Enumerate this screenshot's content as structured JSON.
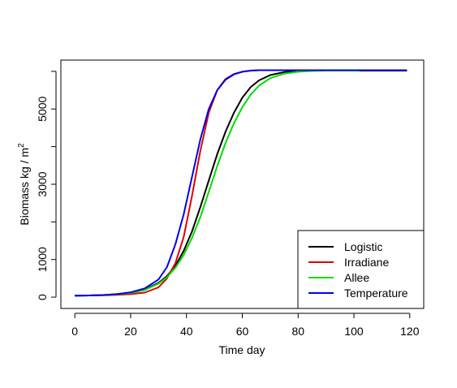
{
  "chart_data": {
    "type": "line",
    "xlabel": "Time day",
    "ylabel_main": "Biomass kg / m",
    "ylabel_sup": "2",
    "xlim": [
      -5,
      125
    ],
    "ylim": [
      -300,
      6300
    ],
    "xticks": [
      0,
      20,
      40,
      60,
      80,
      100,
      120
    ],
    "yticks": [
      0,
      1000,
      3000,
      5000
    ],
    "legend_position": "bottom-right",
    "series": [
      {
        "name": "Logistic",
        "color": "#000000",
        "x": [
          0,
          5,
          10,
          15,
          20,
          25,
          30,
          33,
          36,
          39,
          42,
          45,
          48,
          51,
          54,
          57,
          60,
          63,
          66,
          70,
          75,
          80,
          85,
          90,
          95,
          100,
          105,
          110,
          115,
          119
        ],
        "y": [
          40,
          45,
          55,
          80,
          120,
          200,
          380,
          560,
          830,
          1230,
          1750,
          2400,
          3100,
          3800,
          4400,
          4900,
          5300,
          5580,
          5760,
          5900,
          5980,
          6010,
          6020,
          6020,
          6020,
          6020,
          6020,
          6020,
          6020,
          6020
        ]
      },
      {
        "name": "Irradiane",
        "color": "#df0000",
        "x": [
          0,
          5,
          10,
          15,
          20,
          25,
          30,
          33,
          36,
          39,
          42,
          45,
          48,
          51,
          54,
          57,
          60,
          63,
          66,
          70,
          75,
          80,
          85,
          90
        ],
        "y": [
          40,
          45,
          50,
          60,
          80,
          120,
          260,
          500,
          900,
          1600,
          2700,
          3900,
          4900,
          5500,
          5800,
          5930,
          5990,
          6020,
          6030,
          6030,
          6030,
          6030,
          6030,
          6030
        ]
      },
      {
        "name": "Allee",
        "color": "#00dd00",
        "x": [
          0,
          5,
          10,
          15,
          20,
          25,
          30,
          33,
          36,
          39,
          42,
          45,
          48,
          51,
          54,
          57,
          60,
          63,
          66,
          70,
          75,
          80,
          85,
          90,
          95,
          100,
          102
        ],
        "y": [
          40,
          45,
          55,
          75,
          110,
          190,
          360,
          530,
          780,
          1120,
          1580,
          2130,
          2800,
          3480,
          4100,
          4620,
          5050,
          5380,
          5620,
          5820,
          5940,
          5990,
          6010,
          6020,
          6020,
          6020,
          6020
        ]
      },
      {
        "name": "Temperature",
        "color": "#0000ee",
        "x": [
          0,
          5,
          10,
          15,
          20,
          25,
          30,
          33,
          36,
          39,
          42,
          45,
          48,
          51,
          54,
          57,
          60,
          63,
          66,
          70,
          75,
          80,
          85,
          90,
          95,
          100,
          105,
          110,
          115,
          119
        ],
        "y": [
          40,
          45,
          55,
          80,
          130,
          230,
          470,
          800,
          1400,
          2200,
          3200,
          4200,
          5000,
          5500,
          5780,
          5920,
          5990,
          6020,
          6030,
          6030,
          6030,
          6030,
          6030,
          6030,
          6030,
          6030,
          6030,
          6030,
          6030,
          6030
        ]
      }
    ]
  }
}
